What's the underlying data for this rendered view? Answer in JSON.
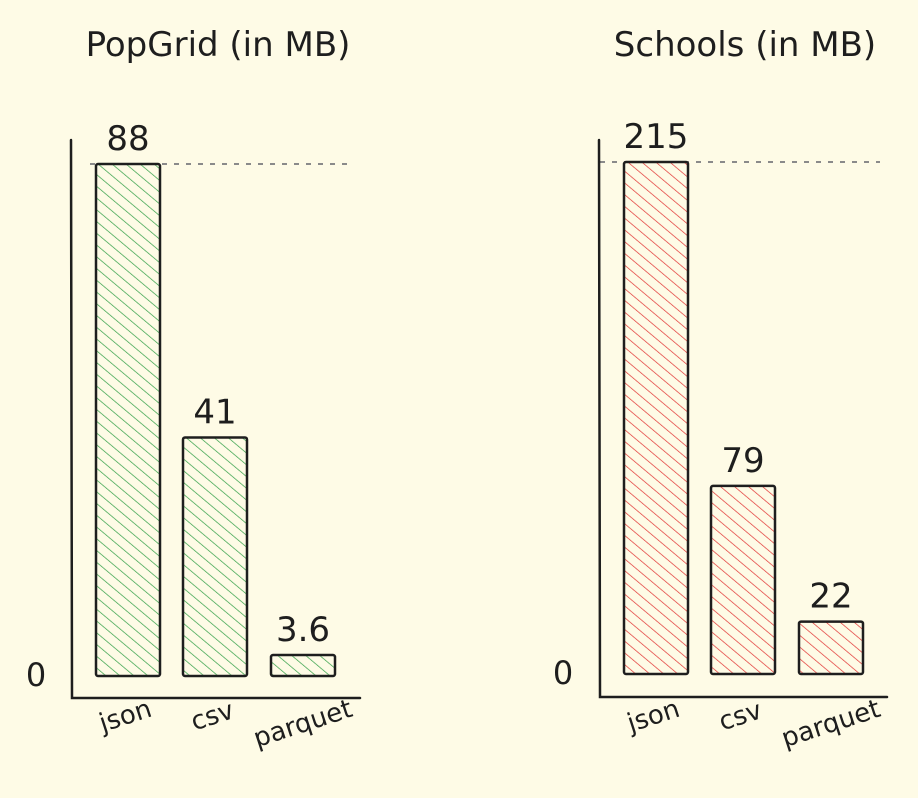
{
  "chart_data": [
    {
      "type": "bar",
      "title": "PopGrid (in MB)",
      "categories": [
        "json",
        "csv",
        "parquet"
      ],
      "values": [
        88,
        41,
        3.6
      ],
      "value_labels": [
        "88",
        "41",
        "3.6"
      ],
      "zero_label": "0",
      "ylim": [
        0,
        88
      ],
      "grid": false,
      "reference_line": "dashed at maximum value",
      "fill_style": "hatched",
      "color": "#2f9e44"
    },
    {
      "type": "bar",
      "title": "Schools (in MB)",
      "categories": [
        "json",
        "csv",
        "parquet"
      ],
      "values": [
        215,
        79,
        22
      ],
      "value_labels": [
        "215",
        "79",
        "22"
      ],
      "zero_label": "0",
      "ylim": [
        0,
        215
      ],
      "grid": false,
      "reference_line": "dashed at maximum value",
      "fill_style": "hatched",
      "color": "#e03131"
    }
  ]
}
